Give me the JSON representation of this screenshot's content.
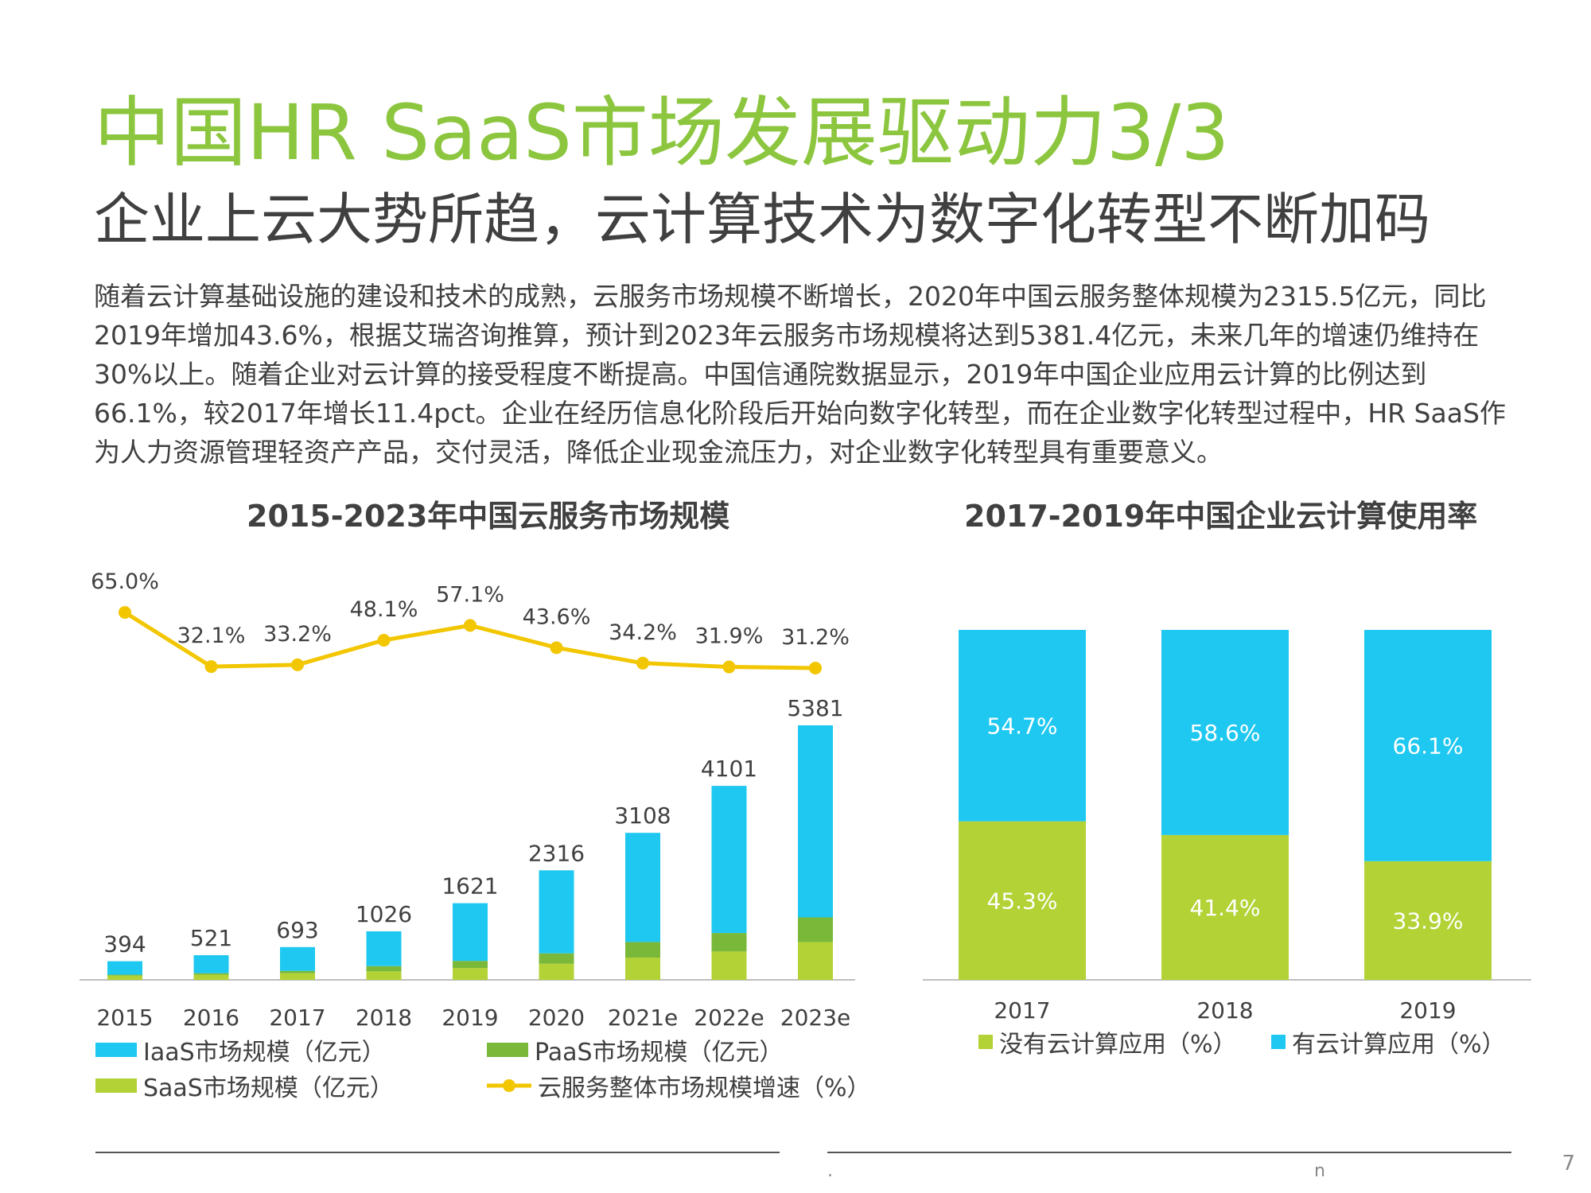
{
  "header": {
    "title": "中国HR SaaS市场发展驱动力3/3",
    "subtitle": "企业上云大势所趋，云计算技术为数字化转型不断加码"
  },
  "body_text": "随着云计算基础设施的建设和技术的成熟，云服务市场规模不断增长，2020年中国云服务整体规模为2315.5亿元，同比2019年增加43.6%，根据艾瑞咨询推算，预计到2023年云服务市场规模将达到5381.4亿元，未来几年的增速仍维持在30%以上。随着企业对云计算的接受程度不断提高。中国信通院数据显示，2019年中国企业应用云计算的比例达到66.1%，较2017年增长11.4pct。企业在经历信息化阶段后开始向数字化转型，而在企业数字化转型过程中，HR SaaS作为人力资源管理轻资产产品，交付灵活，降低企业现金流压力，对企业数字化转型具有重要意义。",
  "colors": {
    "title_green": "#8cc63f",
    "iaas": "#1ec8f0",
    "paas": "#7ab83a",
    "saas": "#b2d235",
    "growth": "#f2c600",
    "no_cloud": "#b2d235",
    "cloud": "#1ec8f0"
  },
  "chart_data": [
    {
      "type": "bar",
      "title": "2015-2023年中国云服务市场规模",
      "categories": [
        "2015",
        "2016",
        "2017",
        "2018",
        "2019",
        "2020",
        "2021e",
        "2022e",
        "2023e"
      ],
      "totals": [
        394,
        521,
        693,
        1026,
        1621,
        2316,
        3108,
        4101,
        5381
      ],
      "total_labels": [
        "394",
        "521",
        "693",
        "1026",
        "1621",
        "2316",
        "3108",
        "4101",
        "5381"
      ],
      "series": [
        {
          "name": "SaaS市场规模（亿元）",
          "values": [
            90,
            110,
            140,
            180,
            250,
            340,
            470,
            600,
            800
          ]
        },
        {
          "name": "PaaS市场规模（亿元）",
          "values": [
            20,
            30,
            50,
            110,
            150,
            220,
            330,
            390,
            520
          ]
        },
        {
          "name": "IaaS市场规模（亿元）",
          "values": [
            284,
            381,
            503,
            736,
            1221,
            1756,
            2308,
            3111,
            4061
          ]
        }
      ],
      "growth": {
        "name": "云服务整体市场规模增速（%）",
        "values": [
          65.0,
          32.1,
          33.2,
          48.1,
          57.1,
          43.6,
          34.2,
          31.9,
          31.2
        ],
        "labels": [
          "65.0%",
          "32.1%",
          "33.2%",
          "48.1%",
          "57.1%",
          "43.6%",
          "34.2%",
          "31.9%",
          "31.2%"
        ]
      },
      "legend": [
        "IaaS市场规模（亿元）",
        "PaaS市场规模（亿元）",
        "SaaS市场规模（亿元）",
        "云服务整体市场规模增速（%）"
      ],
      "legend_position": "bottom"
    },
    {
      "type": "bar",
      "stacked": true,
      "title": "2017-2019年中国企业云计算使用率",
      "categories": [
        "2017",
        "2018",
        "2019"
      ],
      "series": [
        {
          "name": "没有云计算应用（%）",
          "values": [
            45.3,
            41.4,
            33.9
          ],
          "labels": [
            "45.3%",
            "41.4%",
            "33.9%"
          ]
        },
        {
          "name": "有云计算应用（%）",
          "values": [
            54.7,
            58.6,
            66.1
          ],
          "labels": [
            "54.7%",
            "58.6%",
            "66.1%"
          ]
        }
      ],
      "ylim": [
        0,
        100
      ],
      "legend_position": "bottom"
    }
  ],
  "footer": {
    "mark_left": ".",
    "mark_right": "n",
    "page_number": "7"
  }
}
